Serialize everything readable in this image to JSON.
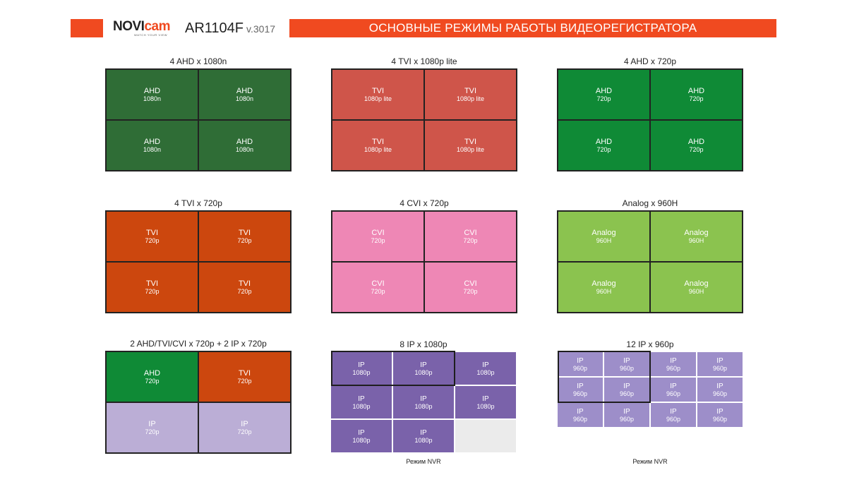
{
  "header": {
    "brand_main": "NOVI",
    "brand_accent": "cam",
    "brand_tagline": "WATCH YOUR VIEW",
    "model": "AR1104F",
    "version": "v.3017",
    "title": "ОСНОВНЫЕ РЕЖИМЫ РАБОТЫ ВИДЕОРЕГИСТРАТОРА",
    "accent_color": "#f04a20"
  },
  "panels": [
    {
      "title": "4 AHD x 1080n",
      "cells": [
        {
          "type": "AHD",
          "res": "1080n"
        },
        {
          "type": "AHD",
          "res": "1080n"
        },
        {
          "type": "AHD",
          "res": "1080n"
        },
        {
          "type": "AHD",
          "res": "1080n"
        }
      ]
    },
    {
      "title": "4 TVI x 1080p lite",
      "cells": [
        {
          "type": "TVI",
          "res": "1080p lite"
        },
        {
          "type": "TVI",
          "res": "1080p lite"
        },
        {
          "type": "TVI",
          "res": "1080p lite"
        },
        {
          "type": "TVI",
          "res": "1080p lite"
        }
      ]
    },
    {
      "title": "4 AHD x 720p",
      "cells": [
        {
          "type": "AHD",
          "res": "720p"
        },
        {
          "type": "AHD",
          "res": "720p"
        },
        {
          "type": "AHD",
          "res": "720p"
        },
        {
          "type": "AHD",
          "res": "720p"
        }
      ]
    },
    {
      "title": "4 TVI x 720p",
      "cells": [
        {
          "type": "TVI",
          "res": "720p"
        },
        {
          "type": "TVI",
          "res": "720p"
        },
        {
          "type": "TVI",
          "res": "720p"
        },
        {
          "type": "TVI",
          "res": "720p"
        }
      ]
    },
    {
      "title": "4 CVI x 720p",
      "cells": [
        {
          "type": "CVI",
          "res": "720p"
        },
        {
          "type": "CVI",
          "res": "720p"
        },
        {
          "type": "CVI",
          "res": "720p"
        },
        {
          "type": "CVI",
          "res": "720p"
        }
      ]
    },
    {
      "title": "Analog x 960H",
      "cells": [
        {
          "type": "Analog",
          "res": "960H"
        },
        {
          "type": "Analog",
          "res": "960H"
        },
        {
          "type": "Analog",
          "res": "960H"
        },
        {
          "type": "Analog",
          "res": "960H"
        }
      ]
    },
    {
      "title": "2 AHD/TVI/CVI x 720p + 2 IP x 720p",
      "cells": [
        {
          "type": "AHD",
          "res": "720p"
        },
        {
          "type": "TVI",
          "res": "720p"
        },
        {
          "type": "IP",
          "res": "720p"
        },
        {
          "type": "IP",
          "res": "720p"
        }
      ]
    },
    {
      "title": "8 IP x 1080p",
      "caption": "Режим NVR",
      "cells": [
        {
          "type": "IP",
          "res": "1080p"
        },
        {
          "type": "IP",
          "res": "1080p"
        },
        {
          "type": "IP",
          "res": "1080p"
        },
        {
          "type": "IP",
          "res": "1080p"
        },
        {
          "type": "IP",
          "res": "1080p"
        },
        {
          "type": "IP",
          "res": "1080p"
        },
        {
          "type": "IP",
          "res": "1080p"
        },
        {
          "type": "IP",
          "res": "1080p"
        }
      ]
    },
    {
      "title": "12 IP x 960p",
      "caption": "Режим NVR",
      "cells": [
        {
          "type": "IP",
          "res": "960p"
        },
        {
          "type": "IP",
          "res": "960p"
        },
        {
          "type": "IP",
          "res": "960p"
        },
        {
          "type": "IP",
          "res": "960p"
        },
        {
          "type": "IP",
          "res": "960p"
        },
        {
          "type": "IP",
          "res": "960p"
        },
        {
          "type": "IP",
          "res": "960p"
        },
        {
          "type": "IP",
          "res": "960p"
        },
        {
          "type": "IP",
          "res": "960p"
        },
        {
          "type": "IP",
          "res": "960p"
        },
        {
          "type": "IP",
          "res": "960p"
        },
        {
          "type": "IP",
          "res": "960p"
        }
      ]
    }
  ]
}
